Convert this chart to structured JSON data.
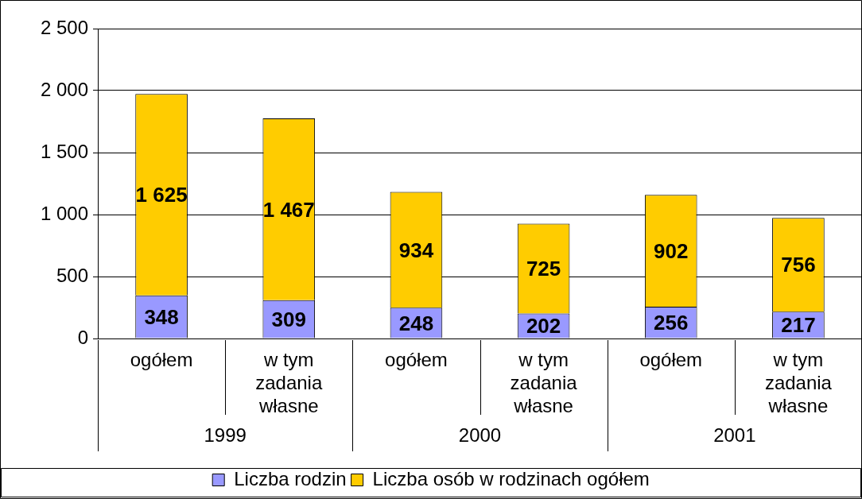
{
  "chart_data": {
    "type": "bar",
    "stacked": true,
    "categories": [
      "ogółem",
      "w tym zadania własne",
      "ogółem",
      "w tym zadania własne",
      "ogółem",
      "w tym zadania własne"
    ],
    "series": [
      {
        "name": "Liczba rodzin",
        "color": "#9999ff",
        "values": [
          348,
          309,
          248,
          202,
          256,
          217
        ],
        "value_labels": [
          "348",
          "309",
          "248",
          "202",
          "256",
          "217"
        ]
      },
      {
        "name": "Liczba osób w rodzinach ogółem",
        "color": "#ffcc00",
        "values": [
          1625,
          1467,
          934,
          725,
          902,
          756
        ],
        "value_labels": [
          "1 625",
          "1 467",
          "934",
          "725",
          "902",
          "756"
        ]
      }
    ],
    "ylim": [
      0,
      2500
    ],
    "yticks": [
      0,
      {
        "value": 500,
        "label": "500"
      },
      {
        "value": 1000,
        "label": "1 000"
      },
      {
        "value": 1500,
        "label": "1 500"
      },
      {
        "value": 2000,
        "label": "2 000"
      },
      {
        "value": 2500,
        "label": "2 500"
      }
    ],
    "annotations": [
      "1999",
      "2000",
      "2001"
    ],
    "grid": "y",
    "legend": "bottom"
  }
}
